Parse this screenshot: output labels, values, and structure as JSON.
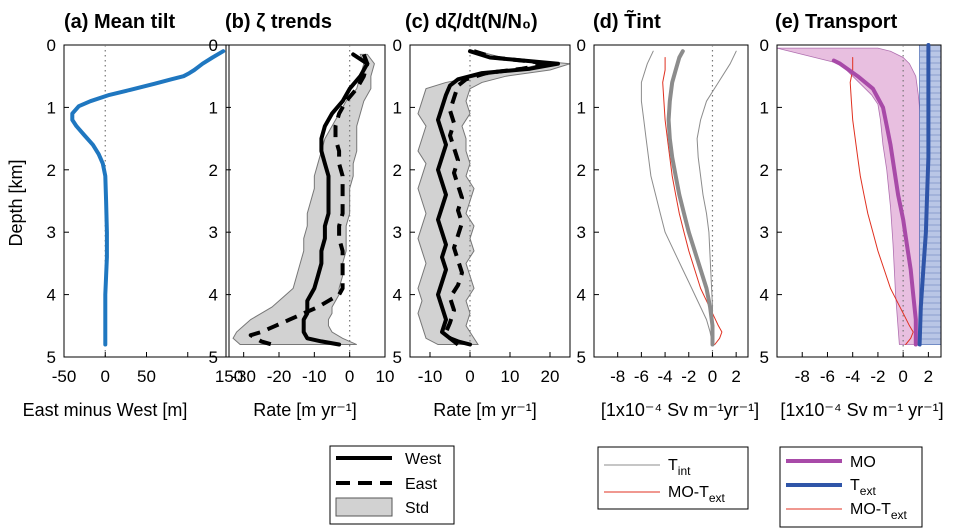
{
  "figure": {
    "ylabel": "Depth [km]",
    "yticks": [
      "0",
      "1",
      "2",
      "3",
      "4",
      "5"
    ],
    "colors": {
      "blue": "#1f77c0",
      "navy": "#2f55a8",
      "magenta": "#a84aa8",
      "red": "#e03020",
      "gray": "#8c8c8c",
      "band": "#d2d2d2",
      "pink": "#e8bfe0",
      "lightblue": "#b9c6e6"
    }
  },
  "chart_data": [
    {
      "id": "a",
      "type": "line",
      "title": "(a) Mean tilt",
      "xlabel": "East minus West [m]",
      "xlim": [
        -50,
        150
      ],
      "ylim": [
        0,
        5
      ],
      "xticks": [
        -50,
        0,
        50,
        100,
        150
      ],
      "xtick_labels": [
        "-50",
        "0",
        "50",
        "",
        "150"
      ],
      "zero_line": true,
      "series": [
        {
          "style": "blue",
          "x": [
            143,
            130,
            118,
            113,
            108,
            102,
            95,
            80,
            60,
            30,
            5,
            -18,
            -32,
            -40,
            -40,
            -35,
            -25,
            -15,
            -8,
            -3,
            0,
            1,
            2,
            2,
            1,
            0,
            0,
            0,
            0,
            0
          ],
          "y": [
            0.1,
            0.2,
            0.3,
            0.35,
            0.4,
            0.45,
            0.5,
            0.55,
            0.62,
            0.72,
            0.8,
            0.9,
            0.98,
            1.1,
            1.2,
            1.3,
            1.45,
            1.6,
            1.75,
            1.9,
            2.1,
            2.5,
            3.0,
            3.4,
            3.7,
            4.0,
            4.2,
            4.5,
            4.7,
            4.8
          ]
        }
      ]
    },
    {
      "id": "b",
      "type": "line",
      "title": "(b) ζ trends",
      "xlabel": "Rate [m yr⁻¹]",
      "xlim": [
        -35,
        10
      ],
      "ylim": [
        0,
        5
      ],
      "xticks": [
        -30,
        -20,
        -10,
        0,
        10
      ],
      "xtick_labels": [
        "-30",
        "-20",
        "-10",
        "0",
        "10"
      ],
      "zero_line": true,
      "bands": [
        {
          "x": [
            3,
            4,
            3,
            2,
            -1,
            -3,
            -5,
            -7,
            -8,
            -9,
            -10,
            -10,
            -11,
            -12,
            -12,
            -13,
            -13,
            -14,
            -15,
            -16,
            -18,
            -20,
            -22,
            -25,
            -28,
            -30,
            -32,
            -33,
            -31
          ],
          "y": [
            0.15,
            0.3,
            0.5,
            0.7,
            0.9,
            1.1,
            1.3,
            1.5,
            1.7,
            1.9,
            2.1,
            2.3,
            2.5,
            2.7,
            2.9,
            3.1,
            3.3,
            3.5,
            3.7,
            3.9,
            4.0,
            4.1,
            4.2,
            4.3,
            4.4,
            4.5,
            4.6,
            4.7,
            4.8
          ]
        },
        {
          "x": [
            5,
            7,
            6,
            6,
            4,
            3,
            2,
            2,
            2,
            1,
            1,
            0,
            0,
            0,
            -1,
            -1,
            -1,
            -2,
            -2,
            -3,
            -3,
            -4,
            -5,
            -5,
            -6,
            -6,
            -5,
            -2,
            2
          ],
          "y": [
            0.15,
            0.3,
            0.5,
            0.7,
            0.9,
            1.1,
            1.3,
            1.5,
            1.7,
            1.9,
            2.1,
            2.3,
            2.5,
            2.7,
            2.9,
            3.1,
            3.3,
            3.5,
            3.7,
            3.9,
            4.0,
            4.1,
            4.2,
            4.3,
            4.4,
            4.5,
            4.6,
            4.7,
            4.8
          ]
        }
      ],
      "series": [
        {
          "name": "West",
          "style": "solid",
          "x": [
            1,
            5,
            3,
            0,
            -2,
            -5,
            -7,
            -8,
            -8,
            -7,
            -6,
            -6,
            -6,
            -6,
            -7,
            -7,
            -8,
            -8,
            -9,
            -10,
            -11,
            -12,
            -12,
            -12,
            -13,
            -13,
            -13,
            -12,
            -8,
            -3
          ],
          "y": [
            0.15,
            0.3,
            0.5,
            0.7,
            0.9,
            1.1,
            1.3,
            1.5,
            1.7,
            1.9,
            2.1,
            2.3,
            2.5,
            2.7,
            2.9,
            3.1,
            3.3,
            3.5,
            3.7,
            3.9,
            4.0,
            4.1,
            4.2,
            4.3,
            4.4,
            4.5,
            4.6,
            4.7,
            4.75,
            4.8
          ]
        },
        {
          "name": "East",
          "style": "dashed",
          "x": [
            4,
            5,
            4,
            2,
            -1,
            -3,
            -4,
            -4,
            -3,
            -3,
            -2,
            -2,
            -2,
            -2,
            -3,
            -3,
            -2,
            -2,
            -2,
            -2,
            -3,
            -6,
            -9,
            -13,
            -17,
            -21,
            -25,
            -28,
            -25,
            -22
          ],
          "y": [
            0.15,
            0.3,
            0.5,
            0.7,
            0.9,
            1.1,
            1.3,
            1.5,
            1.7,
            1.9,
            2.1,
            2.3,
            2.5,
            2.7,
            2.9,
            3.1,
            3.3,
            3.5,
            3.7,
            3.9,
            4.0,
            4.1,
            4.2,
            4.3,
            4.4,
            4.5,
            4.6,
            4.65,
            4.75,
            4.8
          ]
        }
      ]
    },
    {
      "id": "c",
      "type": "line",
      "title": "(c) dζ/dt(N/N₀)",
      "xlabel": "Rate [m yr⁻¹]",
      "xlim": [
        -15,
        25
      ],
      "ylim": [
        0,
        5
      ],
      "xticks": [
        -10,
        0,
        10,
        20
      ],
      "xtick_labels": [
        "-10",
        "0",
        "10",
        "20"
      ],
      "zero_line": true,
      "bands": [
        {
          "x": [
            0,
            4,
            18,
            12,
            2,
            -6,
            -11,
            -12,
            -13,
            -11,
            -12,
            -13,
            -11,
            -12,
            -13,
            -12,
            -11,
            -12,
            -13,
            -12,
            -11,
            -12,
            -13,
            -12,
            -13,
            -12,
            -11,
            -8
          ],
          "y": [
            0.1,
            0.2,
            0.3,
            0.4,
            0.5,
            0.6,
            0.7,
            0.9,
            1.1,
            1.3,
            1.5,
            1.7,
            1.9,
            2.1,
            2.3,
            2.5,
            2.7,
            2.9,
            3.1,
            3.3,
            3.5,
            3.7,
            3.9,
            4.1,
            4.3,
            4.5,
            4.7,
            4.8
          ]
        },
        {
          "x": [
            2,
            8,
            25,
            20,
            9,
            3,
            0,
            -1,
            0,
            -2,
            -1,
            -1,
            0,
            -1,
            1,
            0,
            -1,
            1,
            0,
            1,
            -1,
            0,
            1,
            -1,
            0,
            -1,
            1,
            2
          ],
          "y": [
            0.1,
            0.2,
            0.3,
            0.4,
            0.5,
            0.6,
            0.7,
            0.9,
            1.1,
            1.3,
            1.5,
            1.7,
            1.9,
            2.1,
            2.3,
            2.5,
            2.7,
            2.9,
            3.1,
            3.3,
            3.5,
            3.7,
            3.9,
            4.1,
            4.3,
            4.5,
            4.7,
            4.8
          ]
        }
      ],
      "series": [
        {
          "name": "West",
          "style": "solid",
          "x": [
            0,
            5,
            22,
            15,
            3,
            -3,
            -5,
            -6,
            -7,
            -8,
            -7,
            -6,
            -7,
            -8,
            -7,
            -6,
            -7,
            -8,
            -7,
            -6,
            -7,
            -6,
            -7,
            -8,
            -7,
            -6,
            -7,
            -5,
            -3,
            0
          ],
          "y": [
            0.1,
            0.2,
            0.3,
            0.38,
            0.45,
            0.55,
            0.65,
            0.8,
            1.0,
            1.2,
            1.4,
            1.6,
            1.8,
            2.0,
            2.2,
            2.4,
            2.6,
            2.8,
            3.0,
            3.2,
            3.4,
            3.6,
            3.8,
            4.0,
            4.2,
            4.4,
            4.6,
            4.7,
            4.75,
            4.8
          ]
        },
        {
          "name": "East",
          "style": "dashed",
          "x": [
            1,
            6,
            20,
            13,
            4,
            -1,
            -3,
            -4,
            -5,
            -4,
            -5,
            -4,
            -3,
            -4,
            -3,
            -2,
            -3,
            -2,
            -3,
            -4,
            -3,
            -2,
            -3,
            -5,
            -4,
            -5,
            -6,
            -5,
            -3
          ],
          "y": [
            0.1,
            0.2,
            0.3,
            0.38,
            0.45,
            0.55,
            0.65,
            0.85,
            1.05,
            1.25,
            1.45,
            1.65,
            1.85,
            2.05,
            2.25,
            2.45,
            2.65,
            2.85,
            3.05,
            3.25,
            3.45,
            3.65,
            3.85,
            4.05,
            4.25,
            4.45,
            4.6,
            4.7,
            4.8
          ]
        }
      ]
    },
    {
      "id": "d",
      "type": "line",
      "title": "(d) T̃int",
      "xlabel": "[1x10⁻⁴ Sv m⁻¹yr⁻¹]",
      "xlim": [
        -10,
        3
      ],
      "ylim": [
        0,
        5
      ],
      "xticks": [
        -8,
        -6,
        -4,
        -2,
        0,
        2
      ],
      "xtick_labels": [
        "-8",
        "-6",
        "-4",
        "-2",
        "0",
        "2"
      ],
      "zero_line": true,
      "series": [
        {
          "name": "Tint-upper",
          "style": "thin-gray",
          "x": [
            -5,
            -5.5,
            -6,
            -6,
            -5.8,
            -5.6,
            -5.4,
            -5.2,
            -4.8,
            -4.4,
            -4,
            -3.5,
            -3,
            -2.5,
            -2,
            -1.5,
            -1,
            -0.5,
            -0.2,
            0
          ],
          "y": [
            0.1,
            0.3,
            0.6,
            0.9,
            1.2,
            1.5,
            1.8,
            2.1,
            2.4,
            2.7,
            3.0,
            3.2,
            3.4,
            3.6,
            3.8,
            4.0,
            4.2,
            4.4,
            4.6,
            4.8
          ]
        },
        {
          "name": "Tint-lower",
          "style": "thin-gray",
          "x": [
            2,
            1.5,
            0.5,
            -0.5,
            -1,
            -1.3,
            -1.2,
            -1,
            -0.8,
            -0.5,
            -0.3,
            -0.2,
            -0.1,
            0,
            0
          ],
          "y": [
            0.1,
            0.3,
            0.6,
            0.9,
            1.2,
            1.5,
            1.8,
            2.1,
            2.4,
            2.7,
            3.0,
            3.4,
            3.8,
            4.2,
            4.8
          ]
        },
        {
          "name": "MO-Text",
          "style": "red",
          "x": [
            -4,
            -4,
            -4.2,
            -4.1,
            -4,
            -3.8,
            -3.6,
            -3.4,
            -3.1,
            -2.8,
            -2.4,
            -2,
            -1.5,
            -1,
            -0.5,
            0,
            0.5,
            0.8,
            0.6,
            0.2
          ],
          "y": [
            0.2,
            0.4,
            0.6,
            0.9,
            1.2,
            1.5,
            1.8,
            2.1,
            2.4,
            2.7,
            3.0,
            3.3,
            3.6,
            3.9,
            4.1,
            4.3,
            4.5,
            4.6,
            4.7,
            4.8
          ]
        },
        {
          "name": "Tint",
          "style": "thick-gray",
          "x": [
            -2.5,
            -2.8,
            -3.1,
            -3.4,
            -3.6,
            -3.7,
            -3.6,
            -3.4,
            -3.1,
            -2.8,
            -2.4,
            -2,
            -1.5,
            -1,
            -0.5,
            -0.2,
            0,
            0
          ],
          "y": [
            0.1,
            0.2,
            0.4,
            0.6,
            0.9,
            1.2,
            1.5,
            1.8,
            2.1,
            2.4,
            2.7,
            3.0,
            3.3,
            3.6,
            3.9,
            4.2,
            4.5,
            4.8
          ]
        }
      ]
    },
    {
      "id": "e",
      "type": "line",
      "title": "(e) Transport",
      "xlabel": "[1x10⁻⁴ Sv m⁻¹ yr⁻¹]",
      "xlim": [
        -10,
        3
      ],
      "ylim": [
        0,
        5
      ],
      "xticks": [
        -8,
        -6,
        -4,
        -2,
        0,
        2
      ],
      "xtick_labels": [
        "-8",
        "-6",
        "-4",
        "-2",
        "0",
        "2"
      ],
      "zero_line": true,
      "band_e": {
        "upper": {
          "x": [
            -10,
            -9,
            -8,
            -7,
            -6,
            -5,
            -4.5,
            -4,
            -3.5,
            -3,
            -2.5,
            -2,
            -1.8,
            -1.6,
            -1.3,
            -1,
            -0.8,
            -0.6,
            -0.3
          ],
          "y": [
            0.05,
            0.1,
            0.15,
            0.2,
            0.25,
            0.3,
            0.4,
            0.5,
            0.6,
            0.7,
            0.8,
            0.95,
            1.2,
            1.6,
            2.0,
            2.6,
            3.2,
            4.0,
            4.8
          ]
        },
        "lower": {
          "x": [
            -2,
            -1,
            0,
            0.5,
            1,
            1.2,
            1.4,
            1.5,
            1.6,
            1.8,
            2,
            2,
            1.8,
            1.5,
            1.2
          ],
          "y": [
            0.05,
            0.1,
            0.2,
            0.3,
            0.5,
            0.8,
            1.2,
            1.6,
            2.0,
            2.6,
            3.2,
            3.8,
            4.2,
            4.5,
            4.8
          ]
        }
      },
      "band_text": {
        "x": [
          1.3,
          3
        ],
        "ylim": [
          0,
          4.8
        ]
      },
      "series": [
        {
          "name": "MO-Text",
          "style": "red",
          "x": [
            -4,
            -4,
            -4.2,
            -4.1,
            -4,
            -3.8,
            -3.6,
            -3.4,
            -3.1,
            -2.8,
            -2.4,
            -2,
            -1.5,
            -1,
            -0.5,
            0,
            0.5,
            0.8,
            0.6,
            0.2
          ],
          "y": [
            0.2,
            0.4,
            0.6,
            0.9,
            1.2,
            1.5,
            1.8,
            2.1,
            2.4,
            2.7,
            3.0,
            3.3,
            3.6,
            3.9,
            4.1,
            4.3,
            4.5,
            4.6,
            4.7,
            4.8
          ]
        },
        {
          "name": "MO",
          "style": "magenta",
          "x": [
            -5.5,
            -5,
            -4.3,
            -3.6,
            -3,
            -2.4,
            -2,
            -1.6,
            -1.3,
            -1,
            -0.7,
            -0.4,
            0,
            0.3,
            0.6,
            0.8,
            1,
            1
          ],
          "y": [
            0.25,
            0.3,
            0.4,
            0.5,
            0.6,
            0.7,
            0.85,
            1.0,
            1.3,
            1.6,
            2.0,
            2.4,
            2.8,
            3.2,
            3.6,
            4.0,
            4.4,
            4.8
          ]
        },
        {
          "name": "Text",
          "style": "navy",
          "x": [
            2,
            2,
            2,
            2,
            1.9,
            1.8,
            1.6,
            1.4,
            1.3
          ],
          "y": [
            0,
            0.6,
            1.2,
            1.8,
            2.4,
            3.0,
            3.6,
            4.2,
            4.8
          ]
        }
      ]
    }
  ],
  "legends": {
    "left": [
      "West",
      "East",
      "Std"
    ],
    "middle": [
      "T",
      "int",
      "MO-T",
      "ext"
    ],
    "right": [
      "MO",
      "T",
      "ext",
      "MO-T",
      "ext"
    ]
  }
}
